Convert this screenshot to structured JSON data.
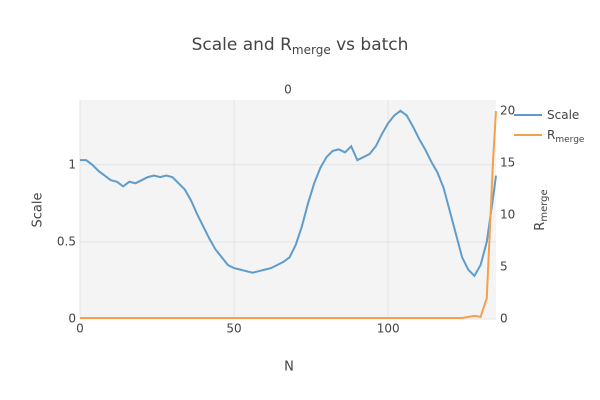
{
  "chart_data": {
    "type": "line",
    "title": "Scale and R",
    "title_sub": "merge",
    "title_end": " vs batch",
    "subtitle": "0",
    "xlabel": "N",
    "ylabel": "Scale",
    "y2label": "R",
    "y2label_sub": "merge",
    "x": [
      0,
      2,
      4,
      6,
      8,
      10,
      12,
      14,
      16,
      18,
      20,
      22,
      24,
      26,
      28,
      30,
      32,
      34,
      36,
      38,
      40,
      42,
      44,
      46,
      48,
      50,
      52,
      54,
      56,
      58,
      60,
      62,
      64,
      66,
      68,
      70,
      72,
      74,
      76,
      78,
      80,
      82,
      84,
      86,
      88,
      90,
      92,
      94,
      96,
      98,
      100,
      102,
      104,
      106,
      108,
      110,
      112,
      114,
      116,
      118,
      120,
      122,
      124,
      126,
      128,
      130,
      132,
      134,
      135
    ],
    "series": [
      {
        "name": "Scale",
        "color": "#5f9ccb",
        "values": [
          1.03,
          1.03,
          1.0,
          0.96,
          0.93,
          0.9,
          0.89,
          0.86,
          0.89,
          0.88,
          0.9,
          0.92,
          0.93,
          0.92,
          0.93,
          0.92,
          0.88,
          0.84,
          0.77,
          0.68,
          0.6,
          0.52,
          0.45,
          0.4,
          0.35,
          0.33,
          0.32,
          0.31,
          0.3,
          0.31,
          0.32,
          0.33,
          0.35,
          0.37,
          0.4,
          0.48,
          0.6,
          0.75,
          0.88,
          0.98,
          1.05,
          1.09,
          1.1,
          1.08,
          1.12,
          1.03,
          1.05,
          1.07,
          1.12,
          1.2,
          1.27,
          1.32,
          1.35,
          1.32,
          1.25,
          1.17,
          1.1,
          1.02,
          0.95,
          0.85,
          0.7,
          0.55,
          0.4,
          0.32,
          0.28,
          0.35,
          0.5,
          0.78,
          0.93
        ]
      },
      {
        "name": "R",
        "name_sub": "merge",
        "color": "#f5a04a",
        "axis": "y2",
        "values": [
          0.1,
          0.1,
          0.1,
          0.1,
          0.1,
          0.1,
          0.1,
          0.1,
          0.1,
          0.1,
          0.1,
          0.1,
          0.1,
          0.1,
          0.1,
          0.1,
          0.1,
          0.1,
          0.1,
          0.1,
          0.1,
          0.1,
          0.1,
          0.1,
          0.1,
          0.1,
          0.1,
          0.1,
          0.1,
          0.1,
          0.1,
          0.1,
          0.1,
          0.1,
          0.1,
          0.1,
          0.1,
          0.1,
          0.1,
          0.1,
          0.1,
          0.1,
          0.1,
          0.1,
          0.1,
          0.1,
          0.1,
          0.1,
          0.1,
          0.1,
          0.1,
          0.1,
          0.1,
          0.1,
          0.1,
          0.1,
          0.1,
          0.1,
          0.1,
          0.1,
          0.1,
          0.1,
          0.1,
          0.2,
          0.3,
          0.2,
          2,
          15,
          20
        ]
      }
    ],
    "xlim": [
      0,
      135
    ],
    "xticks": [
      0,
      50,
      100
    ],
    "ylim": [
      0,
      1.42
    ],
    "yticks": [
      0,
      0.5,
      1
    ],
    "y2lim": [
      0,
      21.06
    ],
    "y2ticks": [
      0,
      5,
      10,
      15,
      20
    ],
    "grid": true,
    "legend": "right"
  }
}
